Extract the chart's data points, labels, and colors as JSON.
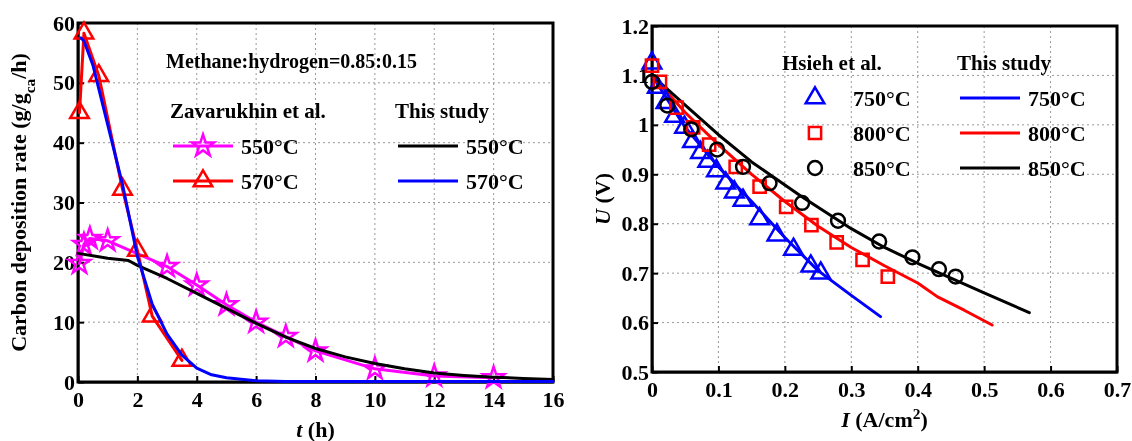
{
  "chart_data": [
    {
      "type": "line",
      "xlabel": "t (h)",
      "ylabel": "Carbon deposition rate (g/g$_{ca}$/h)",
      "xlim": [
        0,
        16
      ],
      "ylim": [
        0,
        60
      ],
      "xticks": [
        0,
        2,
        4,
        6,
        8,
        10,
        12,
        14,
        16
      ],
      "yticks": [
        0,
        10,
        20,
        30,
        40,
        50,
        60
      ],
      "grid": true,
      "legend": "top right",
      "line_style": "solid",
      "annotations": [
        "Methane:hydrogen=0.85:0.15",
        "Zavarukhin et al.",
        "This study"
      ],
      "series": [
        {
          "name": "550°C",
          "color": "#ff00ff",
          "marker": "star",
          "x": [
            0.05,
            0.2,
            0.4,
            1,
            3,
            4,
            5,
            6,
            7,
            8,
            10,
            12,
            14
          ],
          "values": [
            19.8,
            23,
            24,
            23.6,
            19.3,
            16.2,
            12.9,
            10,
            7.6,
            5.2,
            2.2,
            1,
            0.7
          ]
        },
        {
          "name": "570°C",
          "color": "#ff0000",
          "marker": "triangle",
          "x": [
            0.05,
            0.2,
            0.7,
            1.5,
            2,
            2.5,
            3.5
          ],
          "values": [
            45,
            58.3,
            51.2,
            32.2,
            22,
            11,
            3.6
          ]
        },
        {
          "name": "550°C",
          "color": "#000000",
          "marker": "none",
          "x": [
            0,
            1,
            1.7,
            2,
            3,
            4,
            5,
            6,
            7,
            8,
            9,
            10,
            11,
            12,
            13,
            14,
            15,
            16
          ],
          "values": [
            21.5,
            20.7,
            20.3,
            19.5,
            17.3,
            14.8,
            12.3,
            9.8,
            7.5,
            5.6,
            4.2,
            3.1,
            2.2,
            1.5,
            1.1,
            0.8,
            0.6,
            0.4
          ]
        },
        {
          "name": "570°C",
          "color": "#0000ff",
          "marker": "none",
          "x": [
            0.1,
            0.2,
            0.5,
            1,
            1.5,
            2,
            2.5,
            3,
            3.5,
            4,
            4.5,
            5,
            6,
            7,
            8,
            16
          ],
          "values": [
            57.5,
            57,
            53,
            43,
            33,
            21,
            13,
            8,
            4.5,
            2.3,
            1.2,
            0.7,
            0.2,
            0.1,
            0.1,
            0.1
          ]
        }
      ]
    },
    {
      "type": "line",
      "xlabel": "I (A/cm$^{2}$)",
      "ylabel": "U (V)",
      "xlim": [
        0,
        0.7
      ],
      "ylim": [
        0.5,
        1.2
      ],
      "xticks": [
        0,
        0.1,
        0.2,
        0.3,
        0.4,
        0.5,
        0.6,
        0.7
      ],
      "yticks": [
        0.5,
        0.6,
        0.7,
        0.8,
        0.9,
        1,
        1.1,
        1.2
      ],
      "grid": true,
      "legend": "top right",
      "line_style": "solid",
      "annotations": [
        "Hsieh et al.",
        "This study"
      ],
      "series": [
        {
          "name": "750°C",
          "type": "scatter",
          "color": "#0000ff",
          "marker": "triangle",
          "x": [
            0,
            0.008,
            0.021,
            0.034,
            0.049,
            0.061,
            0.073,
            0.084,
            0.097,
            0.111,
            0.124,
            0.137,
            0.162,
            0.188,
            0.213,
            0.239,
            0.254
          ],
          "values": [
            1.125,
            1.076,
            1.045,
            1.017,
            0.995,
            0.966,
            0.944,
            0.926,
            0.907,
            0.882,
            0.864,
            0.847,
            0.81,
            0.777,
            0.748,
            0.714,
            0.7
          ]
        },
        {
          "name": "800°C",
          "type": "scatter",
          "color": "#ff0000",
          "marker": "square",
          "x": [
            0,
            0.012,
            0.037,
            0.062,
            0.086,
            0.126,
            0.162,
            0.202,
            0.24,
            0.278,
            0.317,
            0.355
          ],
          "values": [
            1.12,
            1.087,
            1.035,
            0.995,
            0.96,
            0.915,
            0.875,
            0.834,
            0.797,
            0.762,
            0.727,
            0.693
          ]
        },
        {
          "name": "850°C",
          "type": "scatter",
          "color": "#000000",
          "marker": "circle",
          "x": [
            0,
            0.023,
            0.059,
            0.098,
            0.137,
            0.177,
            0.226,
            0.28,
            0.342,
            0.392,
            0.432,
            0.457
          ],
          "values": [
            1.087,
            1.039,
            0.991,
            0.95,
            0.915,
            0.882,
            0.842,
            0.806,
            0.764,
            0.732,
            0.708,
            0.693
          ]
        },
        {
          "name": "750°C",
          "color": "#0000ff",
          "marker": "none",
          "x": [
            0,
            0.05,
            0.1,
            0.15,
            0.2,
            0.25,
            0.3,
            0.344
          ],
          "values": [
            1.1,
            0.995,
            0.915,
            0.845,
            0.772,
            0.705,
            0.655,
            0.612
          ]
        },
        {
          "name": "800°C",
          "color": "#ff0000",
          "marker": "none",
          "x": [
            0,
            0.05,
            0.1,
            0.15,
            0.2,
            0.25,
            0.3,
            0.35,
            0.4,
            0.43,
            0.47,
            0.512
          ],
          "values": [
            1.1,
            1.025,
            0.96,
            0.9,
            0.845,
            0.795,
            0.752,
            0.715,
            0.68,
            0.652,
            0.625,
            0.595
          ]
        },
        {
          "name": "850°C",
          "color": "#000000",
          "marker": "none",
          "x": [
            0,
            0.05,
            0.1,
            0.15,
            0.225,
            0.3,
            0.35,
            0.4,
            0.45,
            0.5,
            0.568
          ],
          "values": [
            1.1,
            1.04,
            0.98,
            0.925,
            0.855,
            0.79,
            0.752,
            0.72,
            0.69,
            0.66,
            0.62
          ]
        }
      ]
    }
  ]
}
